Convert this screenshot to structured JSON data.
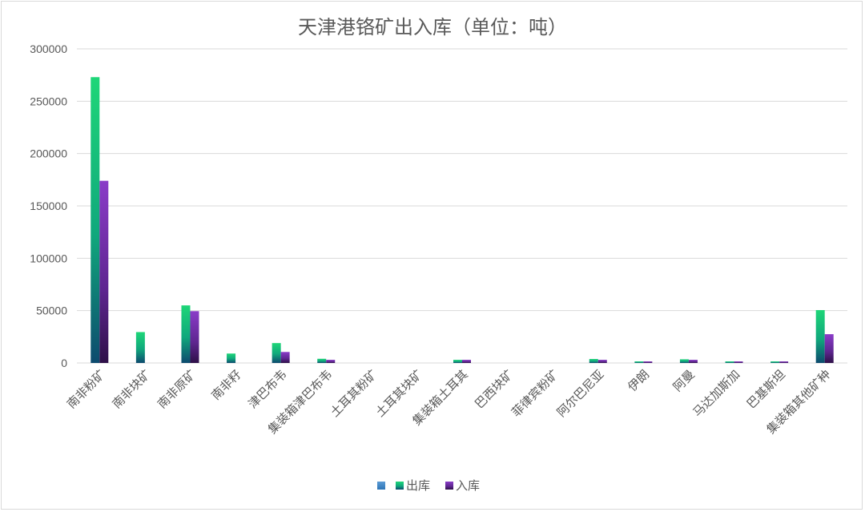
{
  "chart_data": {
    "type": "bar",
    "title": "天津港铬矿出入库（单位：吨）",
    "xlabel": "",
    "ylabel": "",
    "ylim": [
      0,
      300000
    ],
    "yticks": [
      "0",
      "50000",
      "100000",
      "150000",
      "200000",
      "250000",
      "300000"
    ],
    "categories": [
      "南非粉矿",
      "南非块矿",
      "南非原矿",
      "南非籽",
      "津巴布韦",
      "集装箱津巴布韦",
      "土耳其粉矿",
      "土耳其块矿",
      "集装箱土耳其",
      "巴西块矿",
      "菲律宾粉矿",
      "阿尔巴尼亚",
      "伊朗",
      "阿曼",
      "马达加斯加",
      "巴基斯坦",
      "集装箱其他矿种"
    ],
    "series": [
      {
        "name": "",
        "color": "#5b9bd5",
        "values": [
          0,
          0,
          0,
          0,
          0,
          0,
          0,
          0,
          0,
          0,
          0,
          0,
          0,
          0,
          0,
          0,
          0
        ]
      },
      {
        "name": "出库",
        "color": "#1ec86e",
        "values": [
          273000,
          29500,
          55000,
          9000,
          19000,
          4000,
          0,
          0,
          3000,
          0,
          0,
          3800,
          1500,
          3500,
          1500,
          1500,
          50500
        ]
      },
      {
        "name": "入库",
        "color": "#7030a0",
        "values": [
          174000,
          0,
          49500,
          0,
          10500,
          3000,
          0,
          0,
          3000,
          0,
          0,
          3000,
          1500,
          3000,
          1500,
          1500,
          27500
        ]
      }
    ],
    "legend_position": "bottom",
    "grid": true
  }
}
